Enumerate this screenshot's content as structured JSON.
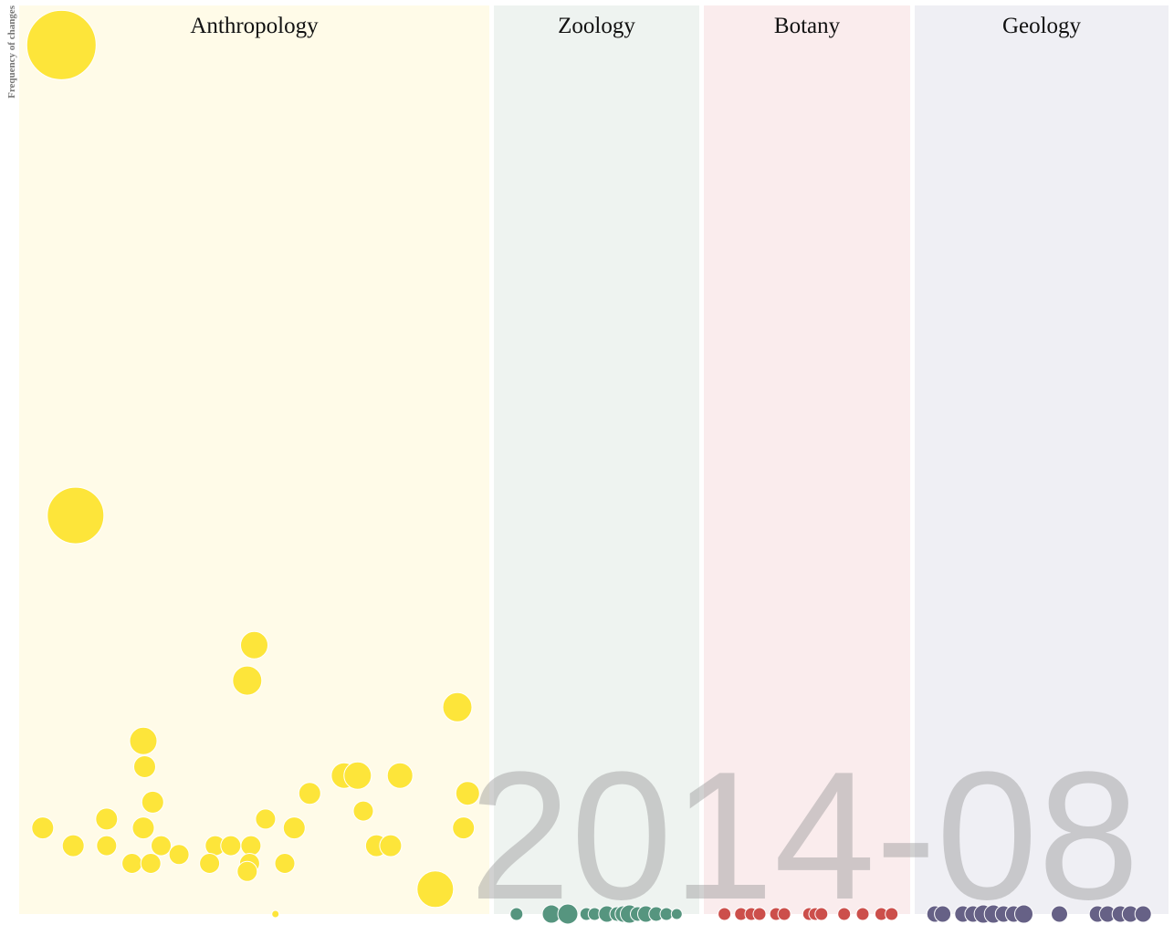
{
  "chart_data": {
    "type": "scatter",
    "title": "",
    "date_label": "2014-08",
    "ylabel": "Frequency of changes",
    "ylim": [
      0,
      100
    ],
    "grid": false,
    "legend": "none",
    "panels": [
      {
        "name": "Anthropology",
        "fill": "#fffbe8",
        "color": "#fde53a",
        "points": [
          {
            "x": 0.09,
            "y": 97.9,
            "s": 38
          },
          {
            "x": 0.12,
            "y": 44.9,
            "s": 31
          },
          {
            "x": 0.5,
            "y": 30.3,
            "s": 15
          },
          {
            "x": 0.485,
            "y": 26.3,
            "s": 16
          },
          {
            "x": 0.932,
            "y": 23.3,
            "s": 16
          },
          {
            "x": 0.264,
            "y": 19.5,
            "s": 15
          },
          {
            "x": 0.267,
            "y": 16.6,
            "s": 12
          },
          {
            "x": 0.691,
            "y": 15.6,
            "s": 14
          },
          {
            "x": 0.72,
            "y": 15.6,
            "s": 15
          },
          {
            "x": 0.81,
            "y": 15.6,
            "s": 14
          },
          {
            "x": 0.618,
            "y": 13.6,
            "s": 12
          },
          {
            "x": 0.954,
            "y": 13.6,
            "s": 13
          },
          {
            "x": 0.284,
            "y": 12.6,
            "s": 12
          },
          {
            "x": 0.186,
            "y": 10.7,
            "s": 12
          },
          {
            "x": 0.524,
            "y": 10.7,
            "s": 11
          },
          {
            "x": 0.732,
            "y": 11.6,
            "s": 11
          },
          {
            "x": 0.05,
            "y": 9.7,
            "s": 12
          },
          {
            "x": 0.264,
            "y": 9.7,
            "s": 12
          },
          {
            "x": 0.585,
            "y": 9.7,
            "s": 12
          },
          {
            "x": 0.945,
            "y": 9.7,
            "s": 12
          },
          {
            "x": 0.115,
            "y": 7.7,
            "s": 12
          },
          {
            "x": 0.186,
            "y": 7.7,
            "s": 11
          },
          {
            "x": 0.302,
            "y": 7.7,
            "s": 11
          },
          {
            "x": 0.417,
            "y": 7.7,
            "s": 11
          },
          {
            "x": 0.45,
            "y": 7.7,
            "s": 11
          },
          {
            "x": 0.493,
            "y": 7.7,
            "s": 11
          },
          {
            "x": 0.76,
            "y": 7.7,
            "s": 12
          },
          {
            "x": 0.79,
            "y": 7.7,
            "s": 12
          },
          {
            "x": 0.34,
            "y": 6.7,
            "s": 11
          },
          {
            "x": 0.24,
            "y": 5.7,
            "s": 11
          },
          {
            "x": 0.28,
            "y": 5.7,
            "s": 11
          },
          {
            "x": 0.405,
            "y": 5.7,
            "s": 11
          },
          {
            "x": 0.49,
            "y": 5.7,
            "s": 11
          },
          {
            "x": 0.565,
            "y": 5.7,
            "s": 11
          },
          {
            "x": 0.485,
            "y": 4.8,
            "s": 11
          },
          {
            "x": 0.885,
            "y": 2.8,
            "s": 20
          },
          {
            "x": 0.545,
            "y": 0,
            "s": 4
          }
        ]
      },
      {
        "name": "Zoology",
        "fill": "#eef3f0",
        "color": "#56957f",
        "points": [
          {
            "x": 0.11,
            "y": 0,
            "s": 7
          },
          {
            "x": 0.28,
            "y": 0,
            "s": 10
          },
          {
            "x": 0.36,
            "y": 0,
            "s": 11
          },
          {
            "x": 0.45,
            "y": 0,
            "s": 7
          },
          {
            "x": 0.49,
            "y": 0,
            "s": 7
          },
          {
            "x": 0.55,
            "y": 0,
            "s": 9
          },
          {
            "x": 0.6,
            "y": 0,
            "s": 8
          },
          {
            "x": 0.63,
            "y": 0,
            "s": 9
          },
          {
            "x": 0.66,
            "y": 0,
            "s": 10
          },
          {
            "x": 0.7,
            "y": 0,
            "s": 8
          },
          {
            "x": 0.74,
            "y": 0,
            "s": 9
          },
          {
            "x": 0.79,
            "y": 0,
            "s": 8
          },
          {
            "x": 0.84,
            "y": 0,
            "s": 7
          },
          {
            "x": 0.89,
            "y": 0,
            "s": 6
          }
        ]
      },
      {
        "name": "Botany",
        "fill": "#faeced",
        "color": "#cc4f4b",
        "points": [
          {
            "x": 0.1,
            "y": 0,
            "s": 7
          },
          {
            "x": 0.18,
            "y": 0,
            "s": 7
          },
          {
            "x": 0.23,
            "y": 0,
            "s": 7
          },
          {
            "x": 0.27,
            "y": 0,
            "s": 7
          },
          {
            "x": 0.35,
            "y": 0,
            "s": 7
          },
          {
            "x": 0.39,
            "y": 0,
            "s": 7
          },
          {
            "x": 0.51,
            "y": 0,
            "s": 7
          },
          {
            "x": 0.54,
            "y": 0,
            "s": 7
          },
          {
            "x": 0.57,
            "y": 0,
            "s": 7
          },
          {
            "x": 0.68,
            "y": 0,
            "s": 7
          },
          {
            "x": 0.77,
            "y": 0,
            "s": 7
          },
          {
            "x": 0.86,
            "y": 0,
            "s": 7
          },
          {
            "x": 0.91,
            "y": 0,
            "s": 7
          }
        ]
      },
      {
        "name": "Geology",
        "fill": "#efeff4",
        "color": "#666186",
        "points": [
          {
            "x": 0.08,
            "y": 0,
            "s": 9
          },
          {
            "x": 0.11,
            "y": 0,
            "s": 9
          },
          {
            "x": 0.19,
            "y": 0,
            "s": 9
          },
          {
            "x": 0.23,
            "y": 0,
            "s": 9
          },
          {
            "x": 0.27,
            "y": 0,
            "s": 10
          },
          {
            "x": 0.31,
            "y": 0,
            "s": 10
          },
          {
            "x": 0.35,
            "y": 0,
            "s": 9
          },
          {
            "x": 0.39,
            "y": 0,
            "s": 9
          },
          {
            "x": 0.43,
            "y": 0,
            "s": 10
          },
          {
            "x": 0.57,
            "y": 0,
            "s": 9
          },
          {
            "x": 0.72,
            "y": 0,
            "s": 9
          },
          {
            "x": 0.76,
            "y": 0,
            "s": 9
          },
          {
            "x": 0.81,
            "y": 0,
            "s": 9
          },
          {
            "x": 0.85,
            "y": 0,
            "s": 9
          },
          {
            "x": 0.9,
            "y": 0,
            "s": 9
          }
        ]
      }
    ]
  }
}
